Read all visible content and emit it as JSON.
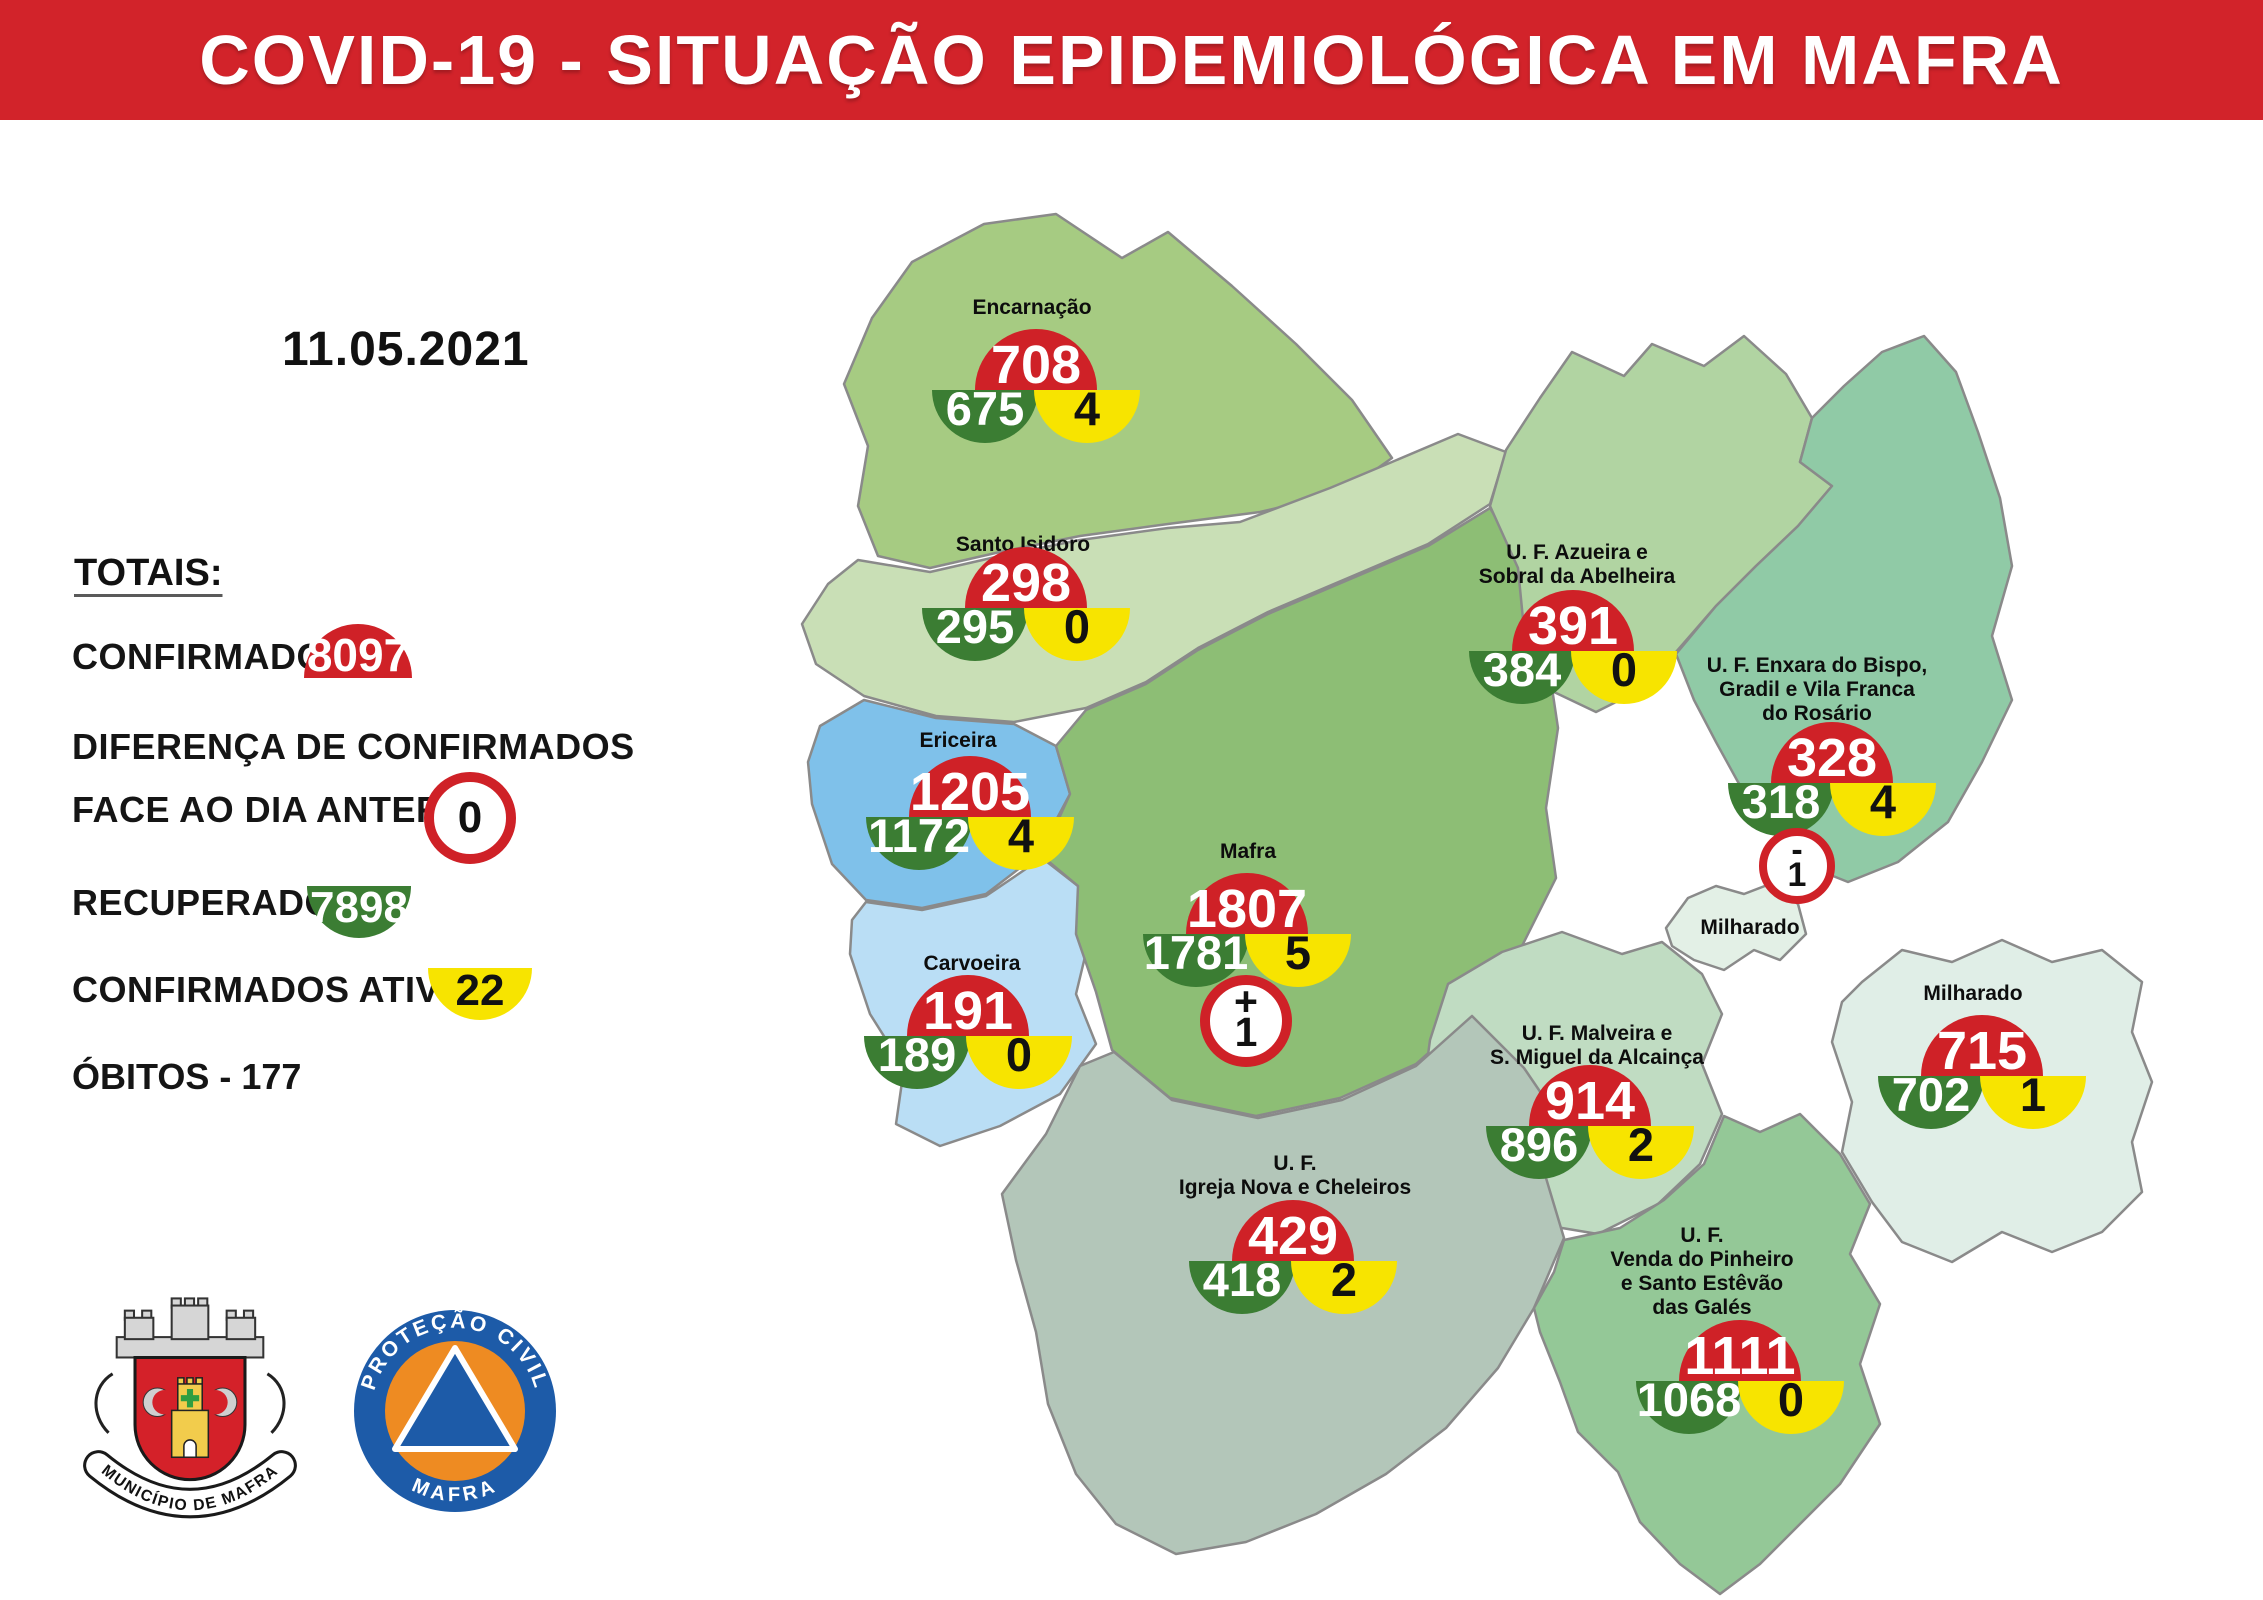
{
  "header": {
    "title": "COVID-19 - SITUAÇÃO EPIDEMIOLÓGICA EM MAFRA"
  },
  "date": "11.05.2021",
  "totals": {
    "heading": "TOTAIS:",
    "confirmed": {
      "label": "CONFIRMADOS",
      "value": "8097"
    },
    "difference": {
      "line1": "DIFERENÇA DE CONFIRMADOS",
      "line2": "FACE AO DIA ANTERIOR",
      "value": "0"
    },
    "recovered": {
      "label": "RECUPERADOS",
      "value": "7898"
    },
    "active": {
      "label": "CONFIRMADOS ATIVOS",
      "value": "22"
    },
    "deaths": {
      "label": "ÓBITOS -",
      "value": "177"
    }
  },
  "colors": {
    "header_bg": "#d2232a",
    "confirmed_red": "#cf2127",
    "recovered_green": "#3b7d33",
    "active_yellow": "#f7e400",
    "diff_ring": "#cf2127"
  },
  "logos": {
    "municipality_banner": "MUNICÍPIO DE MAFRA",
    "civil_protection_arc_top": "PROTEÇÃO CIVIL",
    "civil_protection_arc_bottom": "MAFRA"
  },
  "map": {
    "regions": [
      {
        "id": "encarnacao",
        "name_lines": [
          "Encarnação"
        ],
        "confirmed": "708",
        "recovered": "675",
        "active": "4"
      },
      {
        "id": "santo-isidoro",
        "name_lines": [
          "Santo Isidoro"
        ],
        "confirmed": "298",
        "recovered": "295",
        "active": "0"
      },
      {
        "id": "ericeira",
        "name_lines": [
          "Ericeira"
        ],
        "confirmed": "1205",
        "recovered": "1172",
        "active": "4"
      },
      {
        "id": "carvoeira",
        "name_lines": [
          "Carvoeira"
        ],
        "confirmed": "191",
        "recovered": "189",
        "active": "0"
      },
      {
        "id": "mafra",
        "name_lines": [
          "Mafra"
        ],
        "confirmed": "1807",
        "recovered": "1781",
        "active": "5",
        "diff_sign": "+",
        "diff_value": "1"
      },
      {
        "id": "azueira",
        "name_lines": [
          "U. F. Azueira e",
          "Sobral da Abelheira"
        ],
        "confirmed": "391",
        "recovered": "384",
        "active": "0"
      },
      {
        "id": "enxara",
        "name_lines": [
          "U. F. Enxara do Bispo,",
          "Gradil e Vila Franca",
          "do Rosário"
        ],
        "confirmed": "328",
        "recovered": "318",
        "active": "4",
        "diff_sign": "-",
        "diff_value": "1"
      },
      {
        "id": "milharado-exclave",
        "name_lines": [
          "Milharado"
        ],
        "label_only": true
      },
      {
        "id": "milharado",
        "name_lines": [
          "Milharado"
        ],
        "confirmed": "715",
        "recovered": "702",
        "active": "1"
      },
      {
        "id": "malveira",
        "name_lines": [
          "U. F. Malveira e",
          "S. Miguel da Alcainça"
        ],
        "confirmed": "914",
        "recovered": "896",
        "active": "2"
      },
      {
        "id": "igreja-nova",
        "name_lines": [
          "U. F.",
          "Igreja Nova e Cheleiros"
        ],
        "confirmed": "429",
        "recovered": "418",
        "active": "2"
      },
      {
        "id": "venda",
        "name_lines": [
          "U. F.",
          "Venda do Pinheiro",
          "e Santo Estêvão",
          "das Galés"
        ],
        "confirmed": "1111",
        "recovered": "1068",
        "active": "0"
      }
    ]
  }
}
